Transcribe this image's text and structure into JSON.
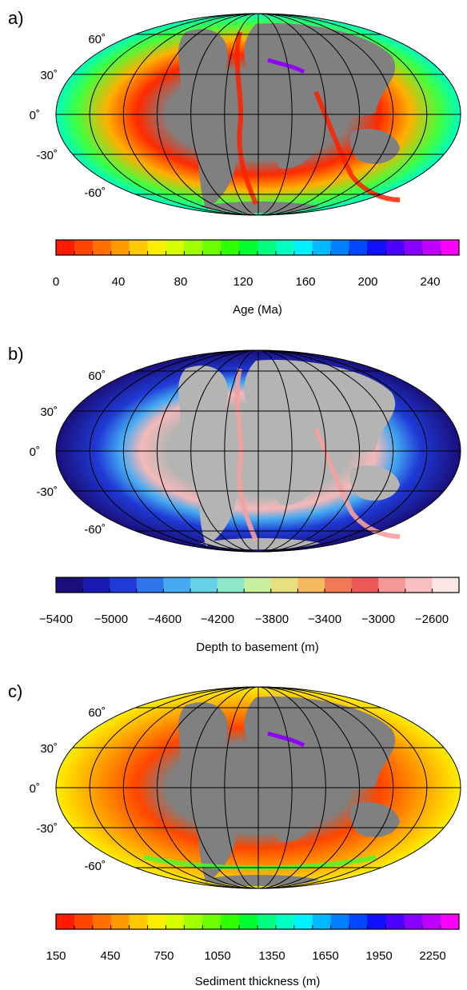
{
  "panels": [
    {
      "id": "a",
      "label": "a)",
      "lat_labels": [
        "60˚",
        "30˚",
        "0˚",
        "-30˚",
        "-60˚"
      ],
      "colorbar": {
        "title": "Age (Ma)",
        "tick_labels": [
          "0",
          "40",
          "80",
          "120",
          "160",
          "200",
          "240"
        ],
        "colors": [
          "#ff1a00",
          "#ff4500",
          "#ff7000",
          "#ff9a00",
          "#ffc800",
          "#ffee00",
          "#d4ff00",
          "#a0ff00",
          "#6cff00",
          "#30ff00",
          "#00ff30",
          "#00ff80",
          "#00ffc0",
          "#00f0ff",
          "#00b8ff",
          "#0080ff",
          "#0048ff",
          "#1010ff",
          "#4a00ff",
          "#8800ff",
          "#c000ff",
          "#ff00ff"
        ]
      },
      "map": {
        "ocean": "#36e34a",
        "land": "#808080"
      }
    },
    {
      "id": "b",
      "label": "b)",
      "lat_labels": [
        "60˚",
        "30˚",
        "0˚",
        "-30˚",
        "-60˚"
      ],
      "colorbar": {
        "title": "Depth to basement (m)",
        "tick_labels": [
          "−5400",
          "−5000",
          "−4600",
          "−4200",
          "−3800",
          "−3400",
          "−3000",
          "−2600"
        ],
        "colors": [
          "#1a0f7a",
          "#1a1ab0",
          "#1f3ad6",
          "#2f74e8",
          "#45aaf0",
          "#66d2e8",
          "#8ce8c8",
          "#c8f0a0",
          "#e8e080",
          "#f6b860",
          "#f07a58",
          "#ec5858",
          "#f49898",
          "#f8c0c0",
          "#fde6e6"
        ]
      },
      "map": {
        "ocean": "#1f1f9a",
        "land": "#b4b4b4"
      }
    },
    {
      "id": "c",
      "label": "c)",
      "lat_labels": [
        "60˚",
        "30˚",
        "0˚",
        "-30˚",
        "-60˚"
      ],
      "colorbar": {
        "title": "Sediment thickness (m)",
        "tick_labels": [
          "150",
          "450",
          "750",
          "1050",
          "1350",
          "1650",
          "1950",
          "2250"
        ],
        "colors": [
          "#ff1a00",
          "#ff4500",
          "#ff7000",
          "#ff9a00",
          "#ffc800",
          "#ffee00",
          "#d4ff00",
          "#a0ff00",
          "#6cff00",
          "#30ff00",
          "#00ff30",
          "#00ff80",
          "#00ffc0",
          "#00f0ff",
          "#00b8ff",
          "#0080ff",
          "#0048ff",
          "#1010ff",
          "#4a00ff",
          "#8800ff",
          "#c000ff",
          "#ff00ff"
        ]
      },
      "map": {
        "ocean": "#ff8c1a",
        "land": "#808080"
      }
    }
  ]
}
